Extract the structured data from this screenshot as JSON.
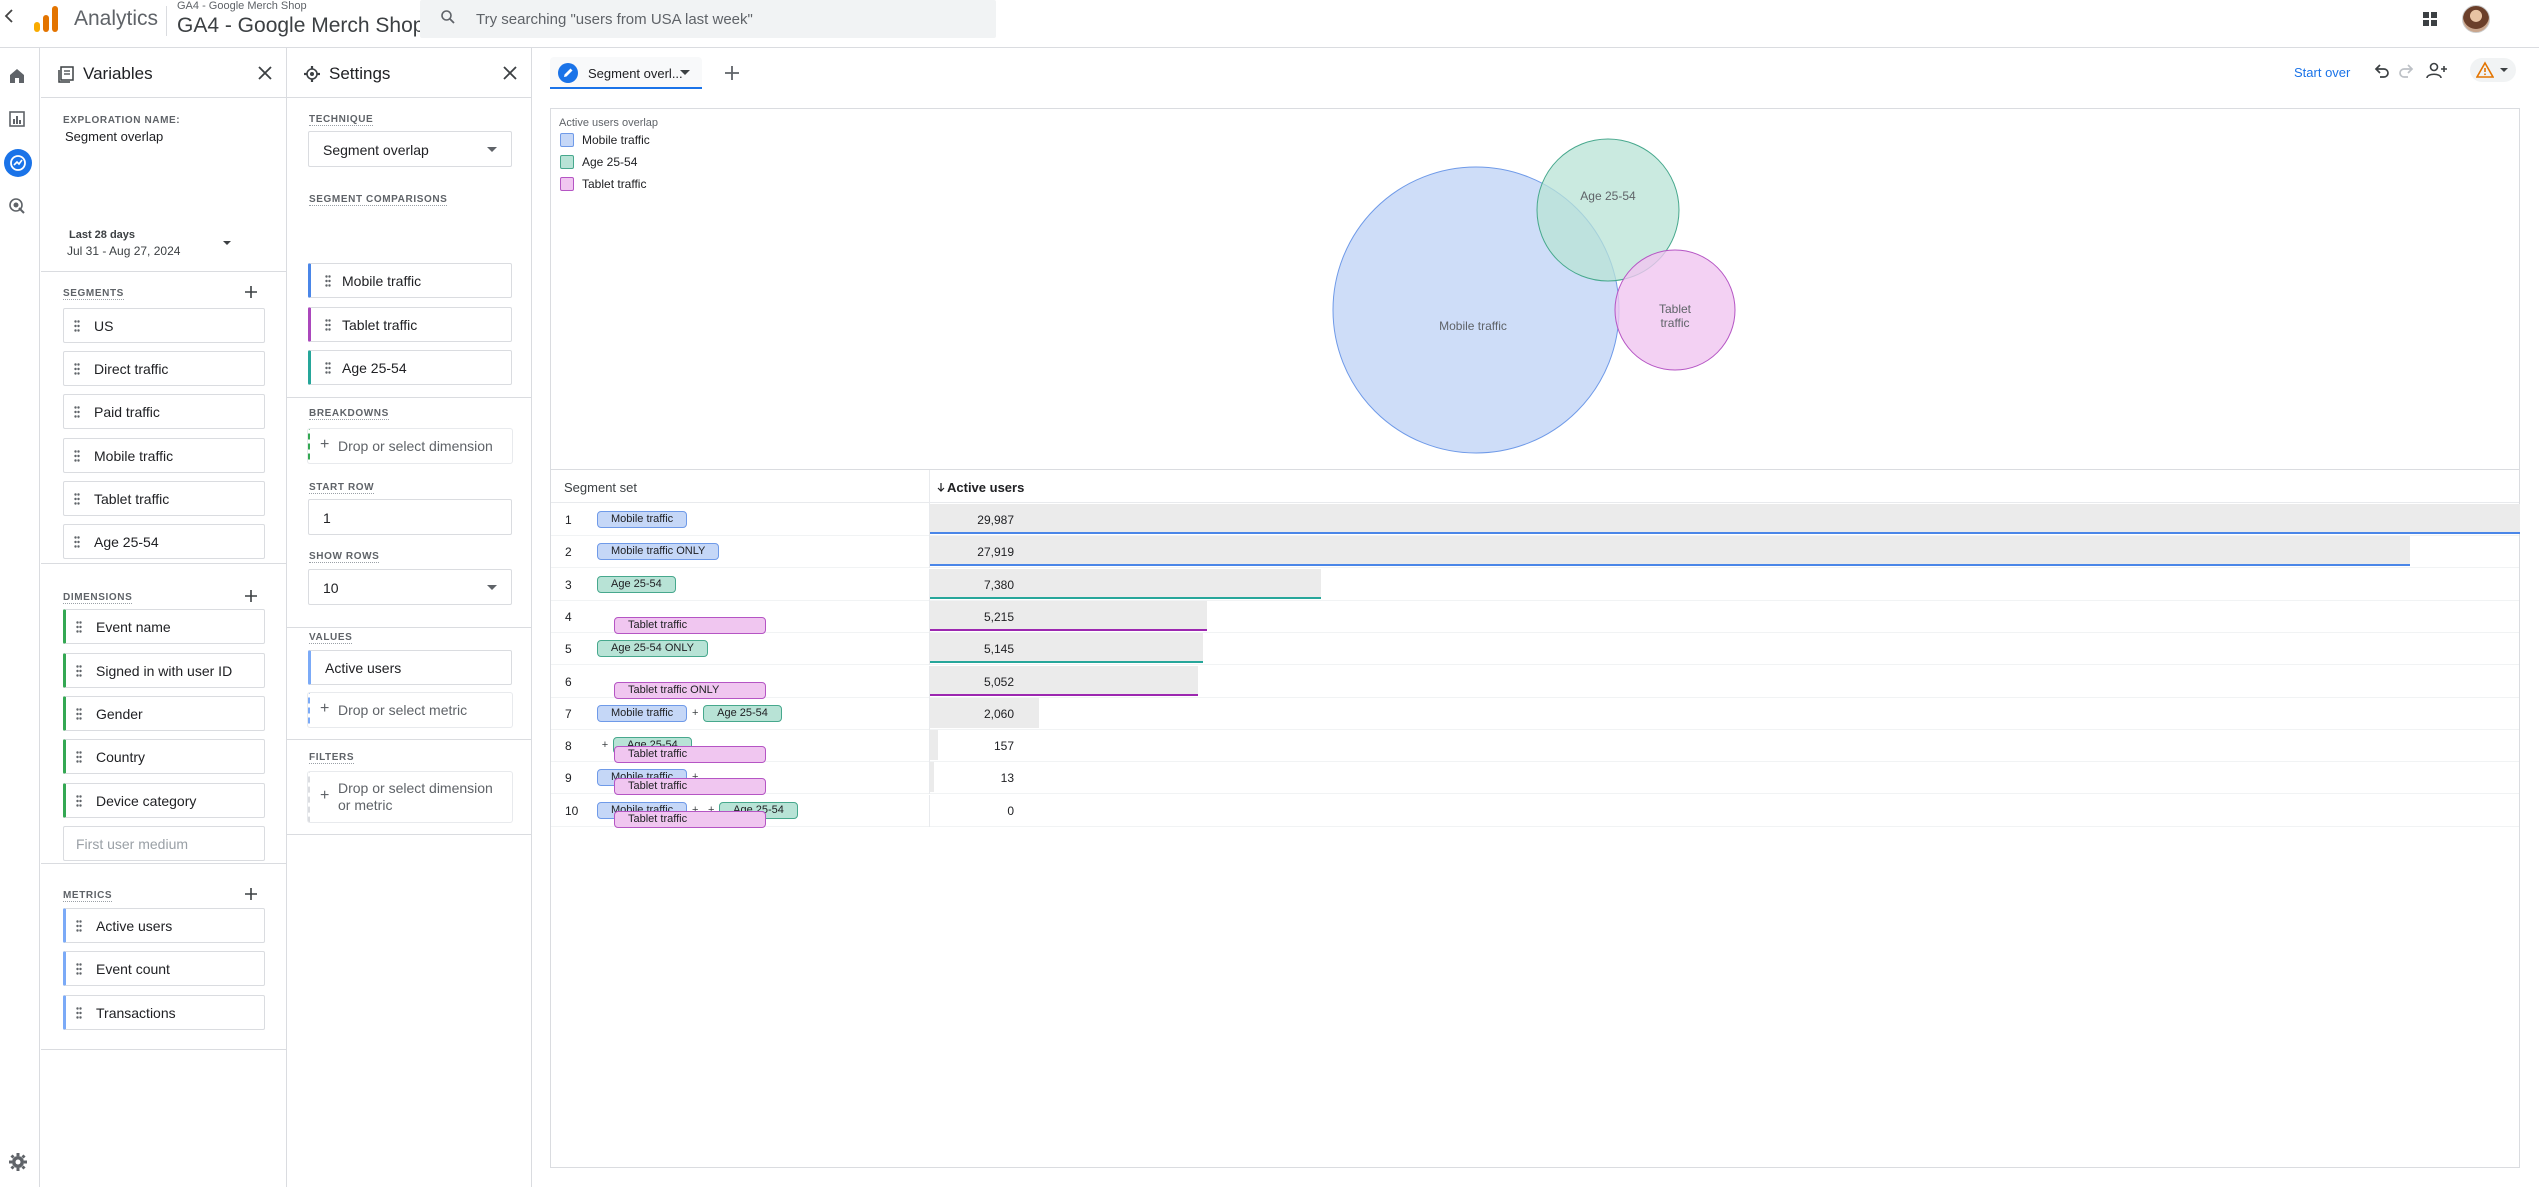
{
  "topbar": {
    "app_name": "Analytics",
    "account_small": "GA4 - Google Merch Shop",
    "account_big": "GA4 - Google Merch Shop",
    "search_placeholder": "Try searching \"users from USA last week\""
  },
  "variables_panel": {
    "title": "Variables",
    "exploration_name_label": "EXPLORATION NAME:",
    "exploration_name": "Segment overlap",
    "date_label": "Last 28 days",
    "date_range": "Jul 31 - Aug 27, 2024",
    "segments_label": "SEGMENTS",
    "segments": [
      "US",
      "Direct traffic",
      "Paid traffic",
      "Mobile traffic",
      "Tablet traffic",
      "Age 25-54"
    ],
    "dimensions_label": "DIMENSIONS",
    "dimensions": [
      "Event name",
      "Signed in with user ID",
      "Gender",
      "Country",
      "Device category"
    ],
    "dimension_placeholder": "First user medium",
    "metrics_label": "METRICS",
    "metrics": [
      "Active users",
      "Event count",
      "Transactions"
    ]
  },
  "settings_panel": {
    "title": "Settings",
    "technique_label": "TECHNIQUE",
    "technique": "Segment overlap",
    "segment_comparisons_label": "SEGMENT COMPARISONS",
    "segment_comparisons": [
      {
        "name": "Mobile traffic",
        "color": "#4a86e8"
      },
      {
        "name": "Tablet traffic",
        "color": "#ab47bc"
      },
      {
        "name": "Age 25-54",
        "color": "#26a69a"
      }
    ],
    "breakdowns_label": "BREAKDOWNS",
    "breakdown_drop": "Drop or select dimension",
    "start_row_label": "START ROW",
    "start_row": "1",
    "show_rows_label": "SHOW ROWS",
    "show_rows": "10",
    "values_label": "VALUES",
    "value": "Active users",
    "value_drop": "Drop or select metric",
    "filters_label": "FILTERS",
    "filter_drop": "Drop or select dimension or metric"
  },
  "tabs": {
    "active_tab": "Segment overl...",
    "start_over": "Start over"
  },
  "viz": {
    "legend_title": "Active users overlap",
    "legend": [
      {
        "name": "Mobile traffic",
        "color": "#c5d7f7",
        "border": "#6f9ae8"
      },
      {
        "name": "Age 25-54",
        "color": "#b8e3d6",
        "border": "#47a88d"
      },
      {
        "name": "Tablet traffic",
        "color": "#f0c6f0",
        "border": "#b555c4"
      }
    ],
    "labels": {
      "mobile": "Mobile traffic",
      "age": "Age 25-54",
      "tablet_1": "Tablet",
      "tablet_2": "traffic"
    }
  },
  "table": {
    "col_segment_set": "Segment set",
    "col_metric": "Active users",
    "max_value": 29987,
    "rows": [
      {
        "n": "1",
        "segs": [
          [
            "Mobile traffic",
            "mob"
          ]
        ],
        "value": "29,987",
        "num": 29987,
        "line": "#4a86e8"
      },
      {
        "n": "2",
        "segs": [
          [
            "Mobile traffic ONLY",
            "mob"
          ]
        ],
        "value": "27,919",
        "num": 27919,
        "line": "#4a86e8"
      },
      {
        "n": "3",
        "segs": [
          [
            "Age 25-54",
            "age"
          ]
        ],
        "value": "7,380",
        "num": 7380,
        "line": "#26a69a"
      },
      {
        "n": "4",
        "segs": [
          [
            "Tablet traffic",
            "tab"
          ]
        ],
        "value": "5,215",
        "num": 5215,
        "line": "#9c27b0"
      },
      {
        "n": "5",
        "segs": [
          [
            "Age 25-54 ONLY",
            "age"
          ]
        ],
        "value": "5,145",
        "num": 5145,
        "line": "#26a69a"
      },
      {
        "n": "6",
        "segs": [
          [
            "Tablet traffic ONLY",
            "tab"
          ]
        ],
        "value": "5,052",
        "num": 5052,
        "line": "#9c27b0"
      },
      {
        "n": "7",
        "segs": [
          [
            "Mobile traffic",
            "mob"
          ],
          [
            "Age 25-54",
            "age"
          ]
        ],
        "value": "2,060",
        "num": 2060,
        "line": ""
      },
      {
        "n": "8",
        "segs": [
          [
            "Tablet traffic",
            "tab"
          ],
          [
            "Age 25-54",
            "age"
          ]
        ],
        "value": "157",
        "num": 157,
        "line": ""
      },
      {
        "n": "9",
        "segs": [
          [
            "Mobile traffic",
            "mob"
          ],
          [
            "Tablet traffic",
            "tab"
          ]
        ],
        "value": "13",
        "num": 13,
        "line": ""
      },
      {
        "n": "10",
        "segs": [
          [
            "Mobile traffic",
            "mob"
          ],
          [
            "Tablet traffic",
            "tab"
          ],
          [
            "Age 25-54",
            "age"
          ]
        ],
        "value": "0",
        "num": 0,
        "line": ""
      }
    ]
  }
}
